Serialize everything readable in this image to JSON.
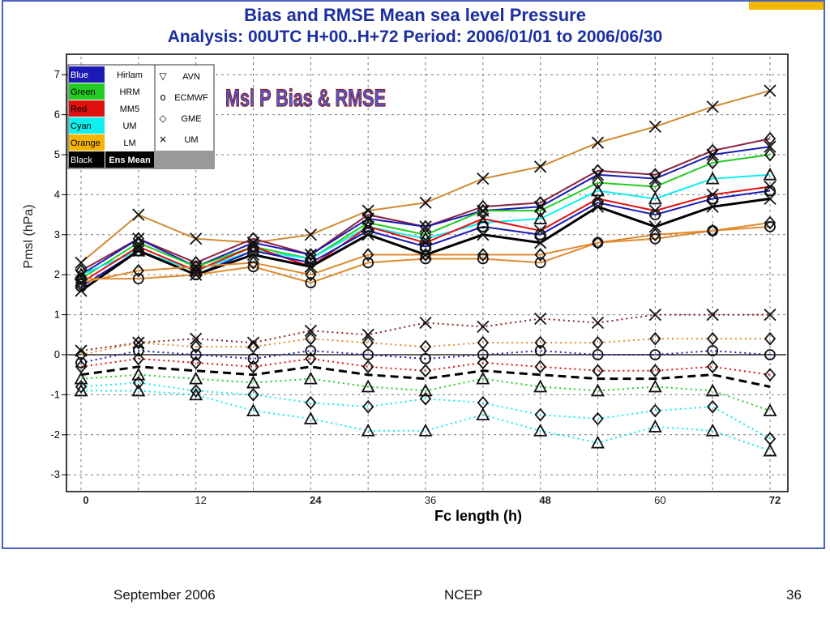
{
  "slide": {
    "title_line1": "Bias and RMSE Mean sea level Pressure",
    "title_line2": "Analysis: 00UTC  H+00..H+72   Period: 2006/01/01 to 2006/06/30",
    "footer_left": "September 2006",
    "footer_center": "NCEP",
    "footer_right": "36"
  },
  "chart_data": {
    "type": "line",
    "title": "Msl P  Bias & RMSE",
    "xlabel": "Fc length (h)",
    "ylabel": "Pmsl (hPa)",
    "xlim": [
      0,
      72
    ],
    "ylim": [
      -3.5,
      7.5
    ],
    "x_ticks": [
      0,
      12,
      24,
      36,
      48,
      60,
      72
    ],
    "y_ticks": [
      -3,
      -2,
      -1,
      0,
      1,
      2,
      3,
      4,
      5,
      6,
      7
    ],
    "grid": true,
    "legend_position": "top-left",
    "legend_colors": [
      {
        "name": "Blue",
        "model": "Hirlam",
        "color": "#1a1ab4"
      },
      {
        "name": "Green",
        "model": "HRM",
        "color": "#22cc22"
      },
      {
        "name": "Red",
        "model": "MM5",
        "color": "#e01010"
      },
      {
        "name": "Cyan",
        "model": "UM",
        "color": "#11eeee"
      },
      {
        "name": "Orange",
        "model": "LM",
        "color": "#f5b400"
      },
      {
        "name": "Black",
        "model": "Ens Mean",
        "color": "#000000"
      }
    ],
    "legend_markers": [
      {
        "symbol": "triangle",
        "glyph": "▽",
        "model": "AVN"
      },
      {
        "symbol": "circle",
        "glyph": "o",
        "model": "ECMWF"
      },
      {
        "symbol": "diamond",
        "glyph": "◇",
        "model": "GME"
      },
      {
        "symbol": "cross",
        "glyph": "×",
        "model": "UM"
      }
    ],
    "x": [
      0,
      6,
      12,
      18,
      24,
      30,
      36,
      42,
      48,
      54,
      60,
      66,
      72
    ],
    "rmse_series": [
      {
        "color": "#d08a30",
        "marker": "cross",
        "values": [
          2.3,
          3.5,
          2.9,
          2.8,
          3.0,
          3.6,
          3.8,
          4.4,
          4.7,
          5.3,
          5.7,
          6.2,
          6.6
        ]
      },
      {
        "color": "#8b2040",
        "marker": "diamond",
        "values": [
          2.1,
          2.9,
          2.3,
          2.9,
          2.5,
          3.5,
          3.2,
          3.7,
          3.8,
          4.6,
          4.5,
          5.1,
          5.4
        ]
      },
      {
        "color": "#1a1ab4",
        "marker": "cross",
        "values": [
          2.0,
          2.9,
          2.2,
          2.8,
          2.5,
          3.4,
          3.2,
          3.6,
          3.7,
          4.5,
          4.4,
          5.0,
          5.2
        ]
      },
      {
        "color": "#22cc22",
        "marker": "diamond",
        "values": [
          1.9,
          2.8,
          2.2,
          2.7,
          2.4,
          3.3,
          3.0,
          3.6,
          3.6,
          4.3,
          4.2,
          4.8,
          5.0
        ]
      },
      {
        "color": "#11eeee",
        "marker": "triangle",
        "values": [
          2.0,
          2.6,
          2.1,
          2.6,
          2.4,
          3.2,
          2.9,
          3.3,
          3.4,
          4.1,
          3.9,
          4.4,
          4.5
        ]
      },
      {
        "color": "#e01010",
        "marker": "cross",
        "values": [
          1.8,
          2.7,
          2.1,
          2.7,
          2.2,
          3.2,
          2.8,
          3.4,
          3.1,
          3.9,
          3.6,
          4.0,
          4.2
        ]
      },
      {
        "color": "#1a1ab4",
        "marker": "circle",
        "values": [
          1.7,
          2.6,
          2.0,
          2.6,
          2.3,
          3.1,
          2.7,
          3.2,
          3.0,
          3.8,
          3.5,
          3.9,
          4.1
        ]
      },
      {
        "color": "#000000",
        "marker": "cross",
        "values": [
          1.6,
          2.6,
          2.0,
          2.5,
          2.2,
          3.0,
          2.5,
          3.0,
          2.8,
          3.7,
          3.2,
          3.7,
          3.9
        ]
      },
      {
        "color": "#e08a30",
        "marker": "circle",
        "values": [
          1.9,
          1.9,
          2.0,
          2.2,
          1.8,
          2.3,
          2.4,
          2.4,
          2.3,
          2.8,
          2.9,
          3.1,
          3.2
        ]
      },
      {
        "color": "#e08a30",
        "marker": "diamond",
        "values": [
          1.8,
          2.1,
          2.2,
          2.3,
          2.0,
          2.5,
          2.5,
          2.5,
          2.5,
          2.8,
          3.0,
          3.1,
          3.3
        ]
      }
    ],
    "bias_series": [
      {
        "color": "#8b2020",
        "marker": "cross",
        "values": [
          0.1,
          0.3,
          0.4,
          0.3,
          0.6,
          0.5,
          0.8,
          0.7,
          0.9,
          0.8,
          1.0,
          1.0,
          1.0
        ]
      },
      {
        "color": "#e08a30",
        "marker": "diamond",
        "values": [
          0.0,
          0.3,
          0.2,
          0.2,
          0.4,
          0.3,
          0.2,
          0.3,
          0.3,
          0.3,
          0.4,
          0.4,
          0.4
        ]
      },
      {
        "color": "#1a1ab4",
        "marker": "circle",
        "values": [
          -0.2,
          0.1,
          0.0,
          -0.1,
          0.1,
          0.0,
          -0.1,
          0.0,
          0.1,
          0.0,
          0.0,
          0.1,
          0.0
        ]
      },
      {
        "color": "#e01010",
        "marker": "diamond",
        "values": [
          -0.3,
          -0.1,
          -0.2,
          -0.3,
          -0.1,
          -0.3,
          -0.4,
          -0.2,
          -0.3,
          -0.4,
          -0.4,
          -0.3,
          -0.5
        ]
      },
      {
        "color": "#22cc22",
        "marker": "triangle",
        "values": [
          -0.6,
          -0.5,
          -0.6,
          -0.7,
          -0.6,
          -0.8,
          -0.9,
          -0.6,
          -0.8,
          -0.9,
          -0.8,
          -0.9,
          -1.4
        ]
      },
      {
        "color": "#11eeee",
        "marker": "triangle",
        "values": [
          -0.9,
          -0.9,
          -1.0,
          -1.4,
          -1.6,
          -1.9,
          -1.9,
          -1.5,
          -1.9,
          -2.2,
          -1.8,
          -1.9,
          -2.4
        ]
      },
      {
        "color": "#11eeee",
        "marker": "diamond",
        "values": [
          -0.8,
          -0.7,
          -0.9,
          -1.0,
          -1.2,
          -1.3,
          -1.1,
          -1.2,
          -1.5,
          -1.6,
          -1.4,
          -1.3,
          -2.1
        ]
      },
      {
        "color": "#000000",
        "marker": "dash",
        "values": [
          -0.5,
          -0.3,
          -0.4,
          -0.5,
          -0.3,
          -0.5,
          -0.6,
          -0.4,
          -0.5,
          -0.6,
          -0.6,
          -0.5,
          -0.8
        ]
      }
    ]
  }
}
